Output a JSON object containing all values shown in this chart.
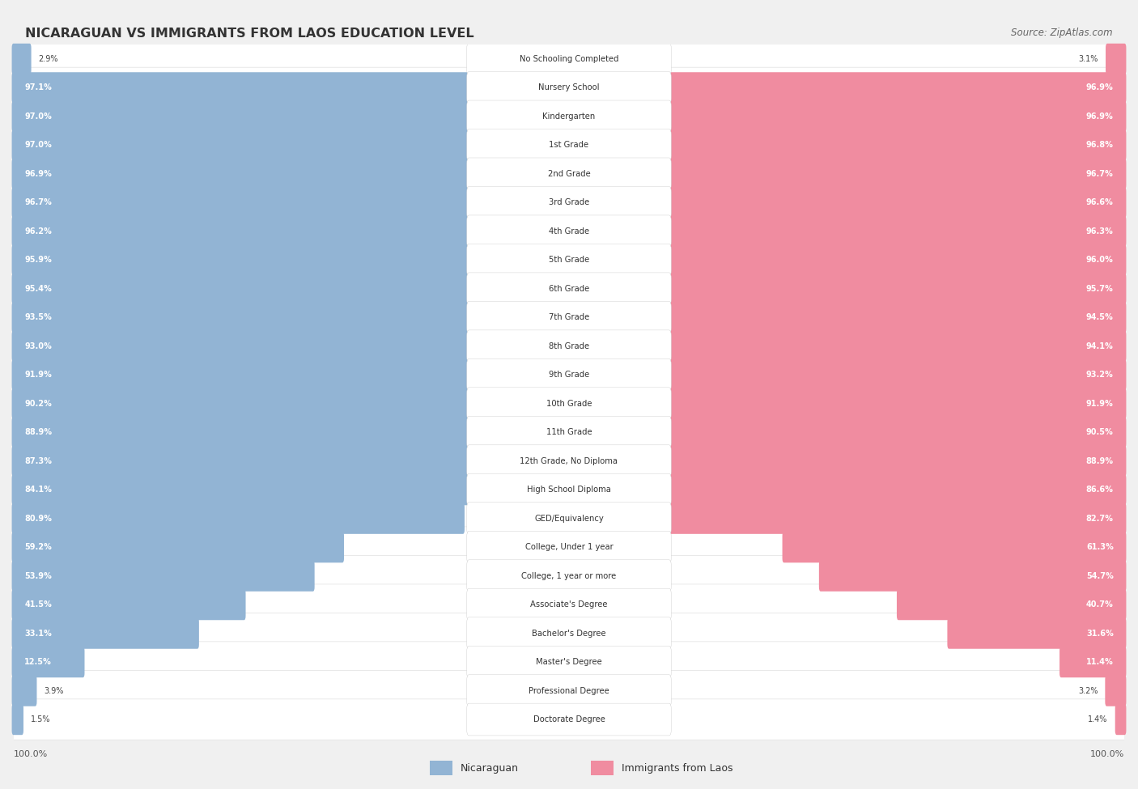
{
  "title": "NICARAGUAN VS IMMIGRANTS FROM LAOS EDUCATION LEVEL",
  "source": "Source: ZipAtlas.com",
  "categories": [
    "No Schooling Completed",
    "Nursery School",
    "Kindergarten",
    "1st Grade",
    "2nd Grade",
    "3rd Grade",
    "4th Grade",
    "5th Grade",
    "6th Grade",
    "7th Grade",
    "8th Grade",
    "9th Grade",
    "10th Grade",
    "11th Grade",
    "12th Grade, No Diploma",
    "High School Diploma",
    "GED/Equivalency",
    "College, Under 1 year",
    "College, 1 year or more",
    "Associate's Degree",
    "Bachelor's Degree",
    "Master's Degree",
    "Professional Degree",
    "Doctorate Degree"
  ],
  "nicaraguan": [
    2.9,
    97.1,
    97.0,
    97.0,
    96.9,
    96.7,
    96.2,
    95.9,
    95.4,
    93.5,
    93.0,
    91.9,
    90.2,
    88.9,
    87.3,
    84.1,
    80.9,
    59.2,
    53.9,
    41.5,
    33.1,
    12.5,
    3.9,
    1.5
  ],
  "laos": [
    3.1,
    96.9,
    96.9,
    96.8,
    96.7,
    96.6,
    96.3,
    96.0,
    95.7,
    94.5,
    94.1,
    93.2,
    91.9,
    90.5,
    88.9,
    86.6,
    82.7,
    61.3,
    54.7,
    40.7,
    31.6,
    11.4,
    3.2,
    1.4
  ],
  "blue_color": "#92b4d4",
  "pink_color": "#f08ca0",
  "background_color": "#f0f0f0",
  "bar_bg_color": "#ffffff",
  "legend_blue": "Nicaraguan",
  "legend_pink": "Immigrants from Laos"
}
